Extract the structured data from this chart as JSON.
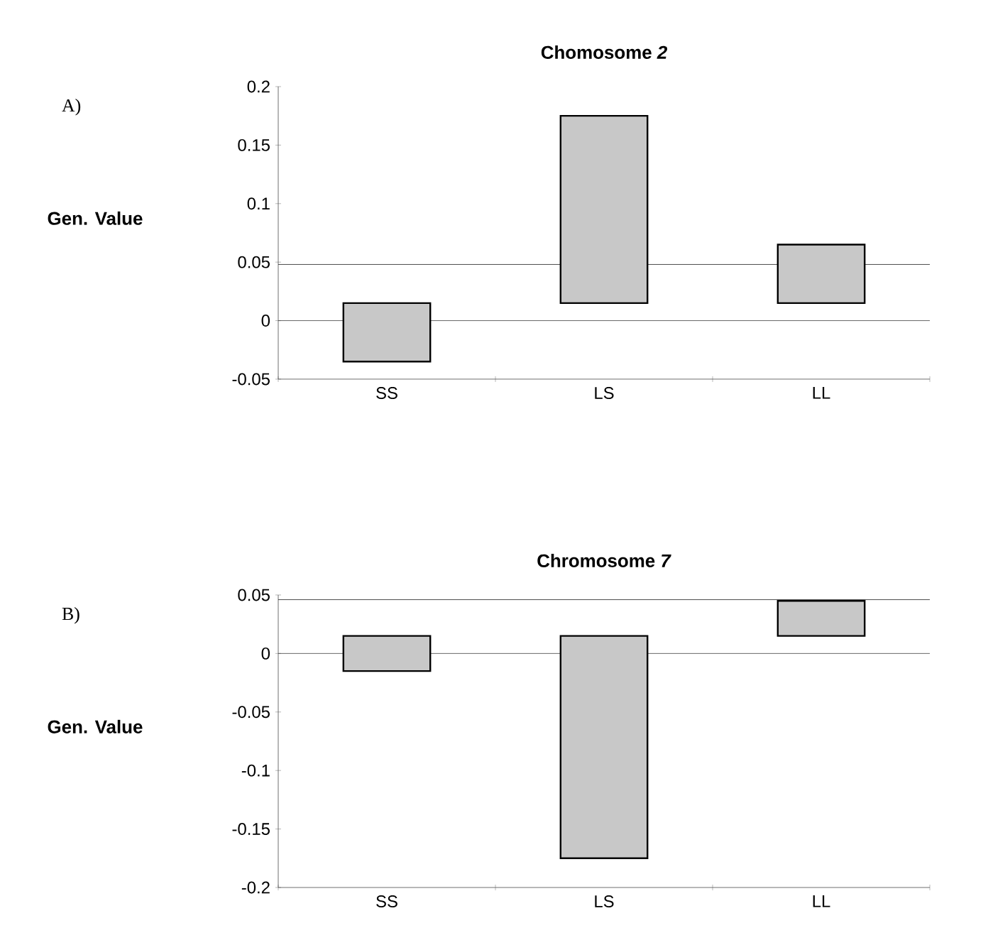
{
  "chart_data": [
    {
      "type": "bar",
      "title": "Chomosome *2*",
      "ylabel": "Gen. Value",
      "annotations": [
        "A)"
      ],
      "categories": [
        "SS",
        "LS",
        "LL"
      ],
      "base": [
        0.015,
        0.015,
        0.015
      ],
      "values": [
        -0.05,
        0.16,
        0.05
      ],
      "color": "#c8c8c8",
      "ylim": [
        -0.05,
        0.2
      ],
      "yticks": [
        -0.05,
        0,
        0.05,
        0.1,
        0.15,
        0.2
      ],
      "grid": false,
      "ref_lines": [
        {
          "axis": "y",
          "value": 0,
          "color": "#404040"
        },
        {
          "axis": "y",
          "value": 0.048,
          "color": "#202020"
        }
      ]
    },
    {
      "type": "bar",
      "title": "Chromosome *7*",
      "ylabel": "Gen. Value",
      "annotations": [
        "B)"
      ],
      "categories": [
        "SS",
        "LS",
        "LL"
      ],
      "base": [
        0.015,
        0.015,
        0.015
      ],
      "values": [
        -0.03,
        -0.19,
        0.03
      ],
      "color": "#c8c8c8",
      "ylim": [
        -0.2,
        0.05
      ],
      "yticks": [
        -0.2,
        -0.15,
        -0.1,
        -0.05,
        0,
        0.05
      ],
      "grid": false,
      "ref_lines": [
        {
          "axis": "y",
          "value": 0,
          "color": "#404040"
        },
        {
          "axis": "y",
          "value": 0.046,
          "color": "#202020"
        }
      ]
    }
  ]
}
